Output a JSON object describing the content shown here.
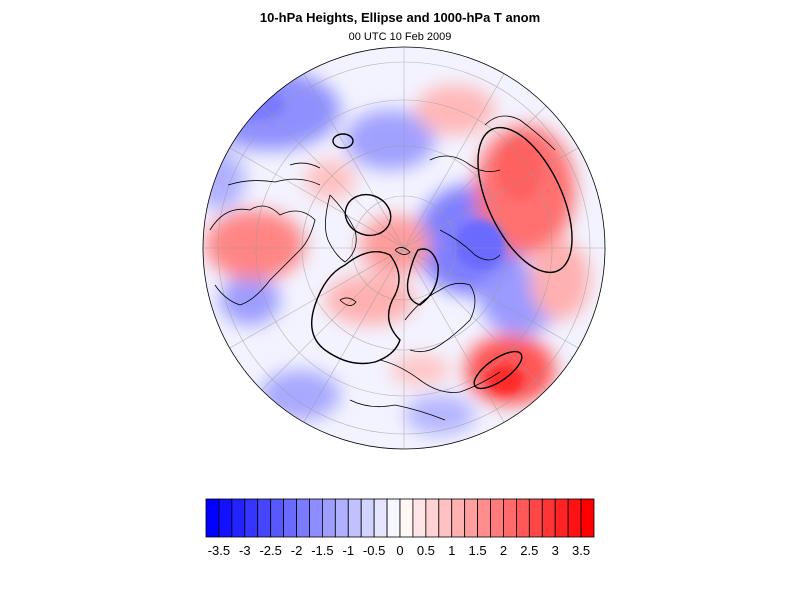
{
  "title": "10-hPa Heights, Ellipse and 1000-hPa T anom",
  "subtitle": "00 UTC 10 Feb 2009",
  "map": {
    "projection": "orthographic-north-polar",
    "field": "1000-hPa temperature anomaly",
    "contour_color": "#000000",
    "coastline_color": "#000000",
    "graticule_color": "#999999"
  },
  "colorbar": {
    "min_color": "#0000ff",
    "mid_color": "#ffffff",
    "max_color": "#ff0000",
    "levels": [
      -3.75,
      -3.5,
      -3.25,
      -3,
      -2.75,
      -2.5,
      -2.25,
      -2,
      -1.75,
      -1.5,
      -1.25,
      -1,
      -0.75,
      -0.5,
      -0.25,
      0,
      0.25,
      0.5,
      0.75,
      1,
      1.25,
      1.5,
      1.75,
      2,
      2.25,
      2.5,
      2.75,
      3,
      3.25,
      3.5,
      3.75
    ],
    "tick_labels": [
      "-3.5",
      "-3",
      "-2.5",
      "-2",
      "-1.5",
      "-1",
      "-0.5",
      "0",
      "0.5",
      "1",
      "1.5",
      "2",
      "2.5",
      "3",
      "3.5"
    ]
  }
}
